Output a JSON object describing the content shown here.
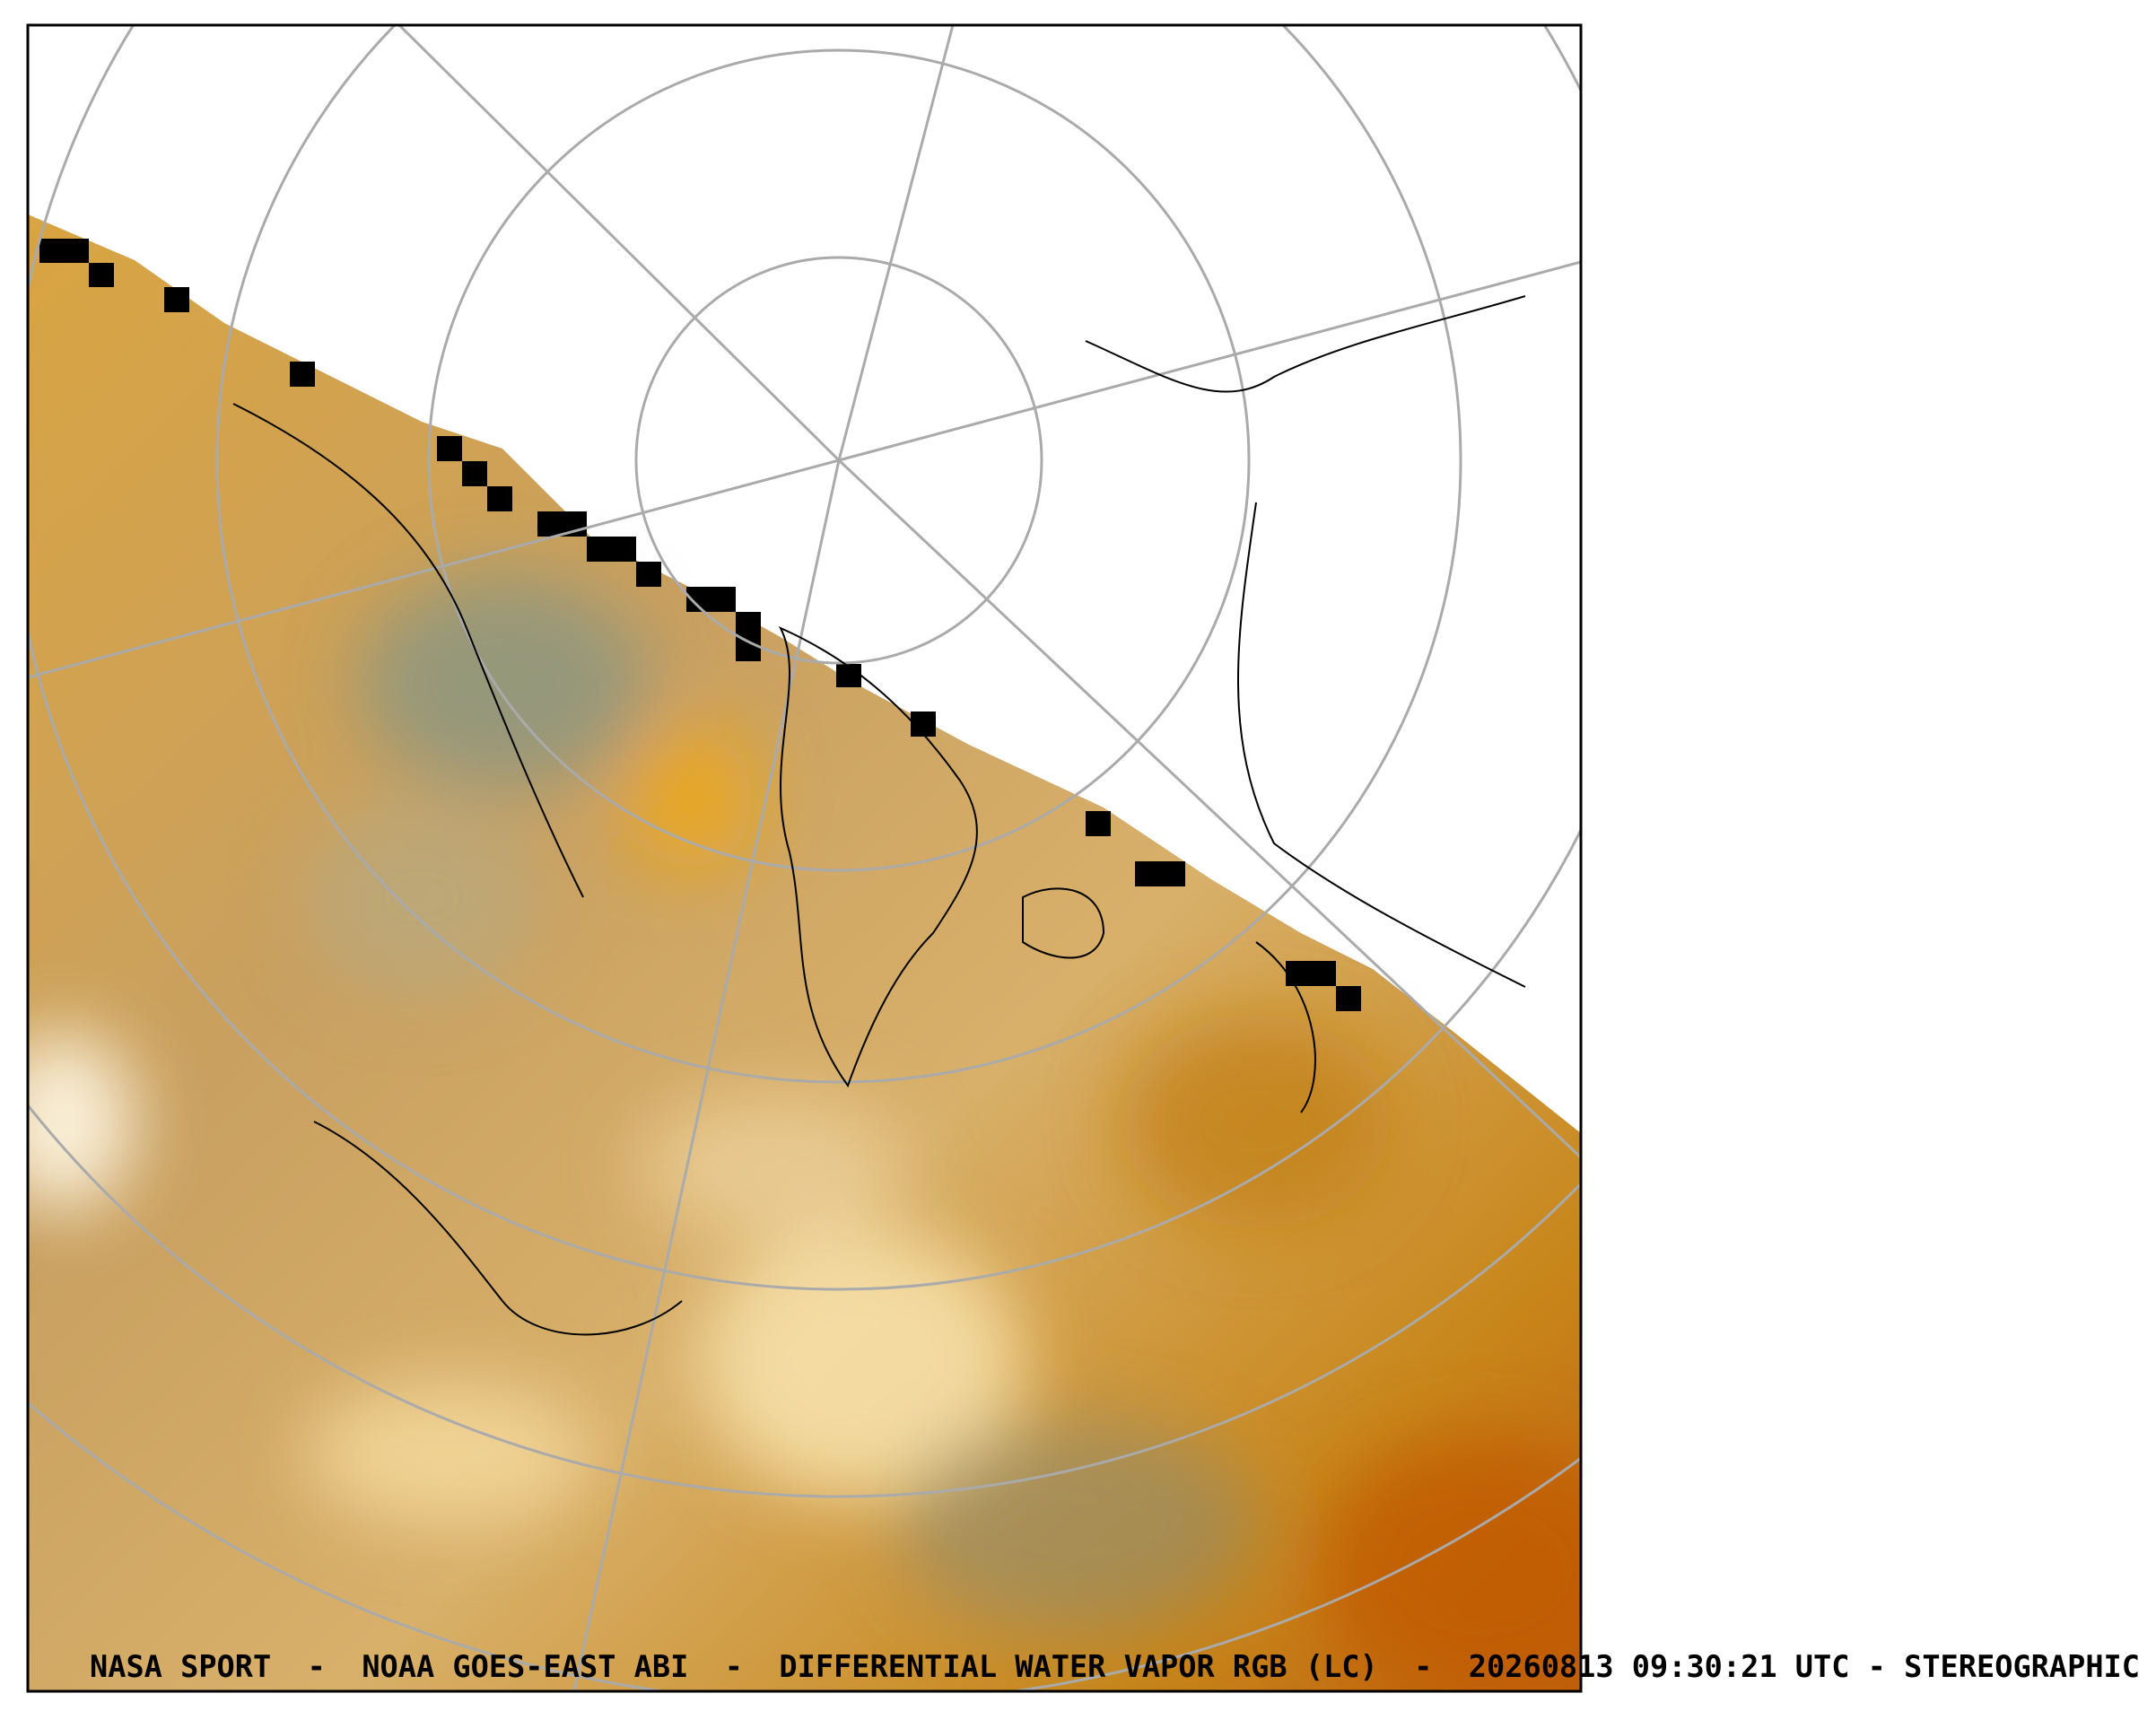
{
  "footer": {
    "caption": "NASA SPORT  -  NOAA GOES-EAST ABI  -  DIFFERENTIAL WATER VAPOR RGB (LC)  -  20260813 09:30:21 UTC - STEREOGRAPHIC"
  }
}
